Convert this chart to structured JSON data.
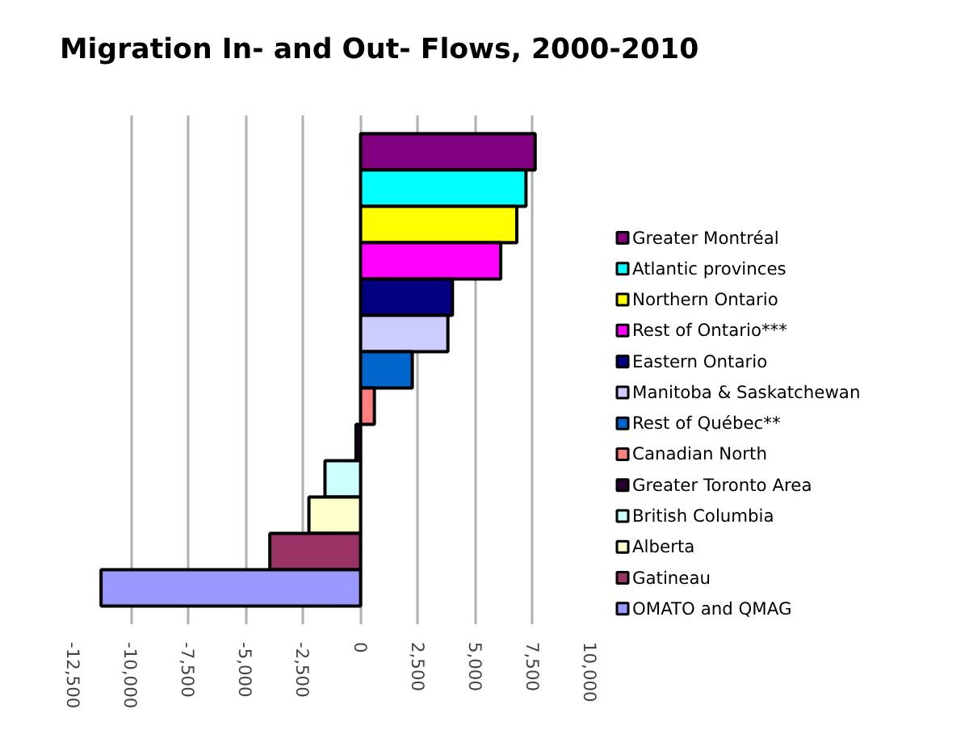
{
  "chart_data": {
    "type": "bar",
    "orientation": "horizontal",
    "title": "Migration In- and Out- Flows, 2000-2010",
    "categories": [
      null
    ],
    "series": [
      {
        "name": "Greater Montréal",
        "color": "#800080",
        "values": [
          7600
        ]
      },
      {
        "name": "Atlantic provinces",
        "color": "#00ffff",
        "values": [
          7200
        ]
      },
      {
        "name": "Northern Ontario",
        "color": "#ffff00",
        "values": [
          6800
        ]
      },
      {
        "name": "Rest of Ontario***",
        "color": "#ff00ff",
        "values": [
          6100
        ]
      },
      {
        "name": "Eastern Ontario",
        "color": "#000080",
        "values": [
          4000
        ]
      },
      {
        "name": "Manitoba & Saskatchewan",
        "color": "#ccccff",
        "values": [
          3800
        ]
      },
      {
        "name": "Rest of Québec**",
        "color": "#0066cc",
        "values": [
          2250
        ]
      },
      {
        "name": "Canadian North",
        "color": "#ff8080",
        "values": [
          600
        ]
      },
      {
        "name": "Greater Toronto Area",
        "color": "#2a0033",
        "values": [
          -200
        ]
      },
      {
        "name": "British Columbia",
        "color": "#ccffff",
        "values": [
          -1550
        ]
      },
      {
        "name": "Alberta",
        "color": "#ffffcc",
        "values": [
          -2250
        ]
      },
      {
        "name": "Gatineau",
        "color": "#993366",
        "values": [
          -3950
        ]
      },
      {
        "name": "OMATO and QMAG",
        "color": "#9999ff",
        "values": [
          -11300
        ]
      }
    ],
    "xlim": [
      -12500,
      10000
    ],
    "xticks": [
      {
        "value": -12500,
        "label": "-12,500"
      },
      {
        "value": -10000,
        "label": "-10,000"
      },
      {
        "value": -7500,
        "label": "-7,500"
      },
      {
        "value": -5000,
        "label": "-5,000"
      },
      {
        "value": -2500,
        "label": "-2,500"
      },
      0,
      {
        "value": 2500,
        "label": "2,500"
      },
      {
        "value": 5000,
        "label": "5,000"
      },
      {
        "value": 7500,
        "label": "7,500"
      },
      {
        "value": 10000,
        "label": "10,000"
      }
    ],
    "grid": "x",
    "legend": "right"
  }
}
